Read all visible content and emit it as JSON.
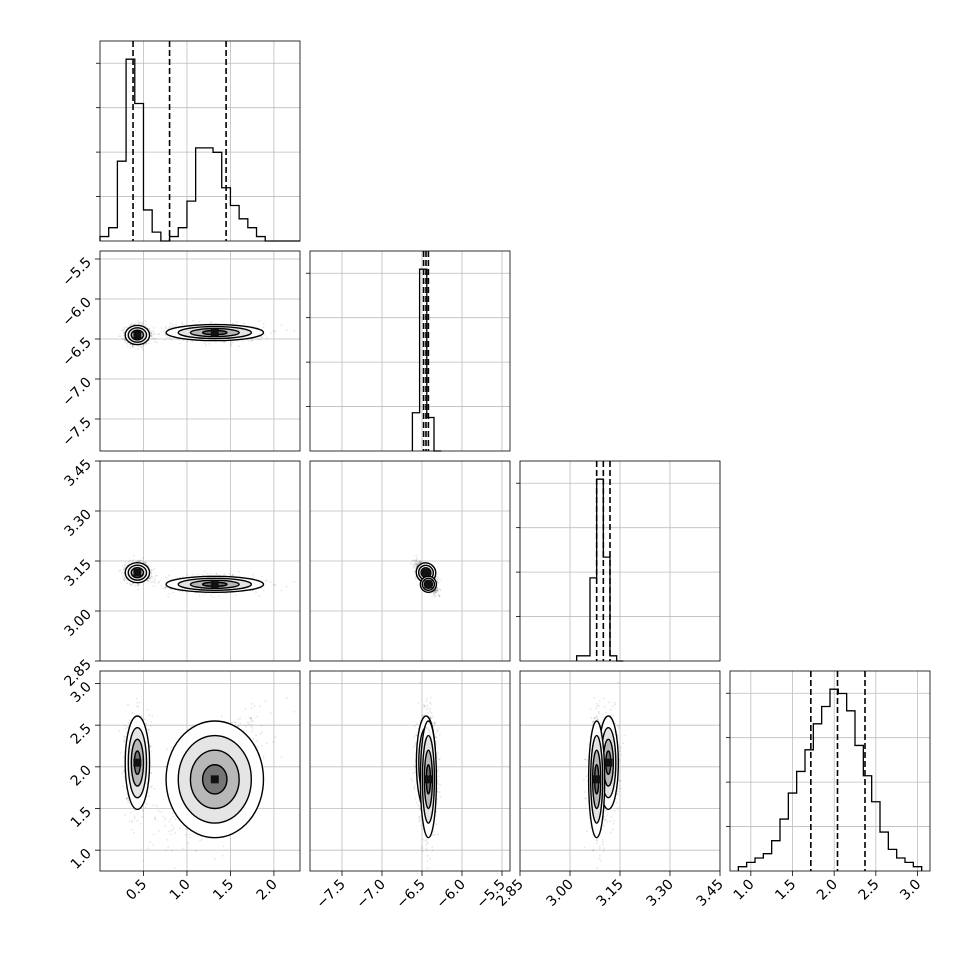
{
  "chart_data": {
    "type": "corner",
    "grid": true,
    "parameters": [
      {
        "range": [
          0.0,
          2.3
        ],
        "ticks": [
          0.5,
          1.0,
          1.5,
          2.0
        ],
        "tick_labels": [
          "0.5",
          "1.0",
          "1.5",
          "2.0"
        ],
        "quantiles": [
          0.38,
          0.8,
          1.45
        ],
        "histogram": {
          "bin_edges": [
            0.0,
            0.1,
            0.2,
            0.3,
            0.4,
            0.5,
            0.6,
            0.7,
            0.8,
            0.9,
            1.0,
            1.1,
            1.2,
            1.3,
            1.4,
            1.5,
            1.6,
            1.7,
            1.8,
            1.9,
            2.0,
            2.1,
            2.2,
            2.3
          ],
          "counts": [
            1,
            3,
            18,
            41,
            31,
            7,
            2,
            0,
            1,
            3,
            9,
            21,
            21,
            20,
            12,
            8,
            5,
            3,
            1,
            0,
            0,
            0,
            0
          ]
        }
      },
      {
        "range": [
          -7.9,
          -5.4
        ],
        "ticks": [
          -7.5,
          -7.0,
          -6.5,
          -6.0,
          -5.5
        ],
        "tick_labels": [
          "−7.5",
          "−7.0",
          "−6.5",
          "−6.0",
          "−5.5"
        ],
        "quantiles": [
          -6.48,
          -6.45,
          -6.42
        ],
        "histogram": {
          "bin_edges": [
            -6.62,
            -6.53,
            -6.44,
            -6.35,
            -6.26
          ],
          "counts": [
            8,
            38,
            7,
            0
          ]
        }
      },
      {
        "range": [
          2.85,
          3.45
        ],
        "ticks": [
          2.85,
          3.0,
          3.15,
          3.3,
          3.45
        ],
        "tick_labels": [
          "2.85",
          "3.00",
          "3.15",
          "3.30",
          "3.45"
        ],
        "quantiles": [
          3.08,
          3.1,
          3.12
        ],
        "histogram": {
          "bin_edges": [
            3.02,
            3.06,
            3.08,
            3.1,
            3.12,
            3.14,
            3.16
          ],
          "counts": [
            1,
            16,
            35,
            20,
            1,
            0
          ]
        }
      },
      {
        "range": [
          0.75,
          3.15
        ],
        "ticks": [
          1.0,
          1.5,
          2.0,
          2.5,
          3.0
        ],
        "tick_labels": [
          "1.0",
          "1.5",
          "2.0",
          "2.5",
          "3.0"
        ],
        "quantiles": [
          1.72,
          2.04,
          2.37
        ],
        "histogram": {
          "bin_edges": [
            0.85,
            0.95,
            1.05,
            1.15,
            1.25,
            1.35,
            1.45,
            1.55,
            1.65,
            1.75,
            1.85,
            1.95,
            2.05,
            2.15,
            2.25,
            2.35,
            2.45,
            2.55,
            2.65,
            2.75,
            2.85,
            2.95,
            3.05
          ],
          "counts": [
            1,
            2,
            3,
            4,
            7,
            12,
            18,
            23,
            28,
            34,
            38,
            42,
            41,
            37,
            29,
            22,
            16,
            9,
            5,
            3,
            2,
            1
          ]
        }
      }
    ],
    "clusters": [
      {
        "means": [
          0.43,
          -6.45,
          3.115,
          2.05
        ],
        "sd": [
          0.07,
          0.06,
          0.015,
          0.28
        ]
      },
      {
        "means": [
          1.32,
          -6.42,
          3.08,
          1.85
        ],
        "sd": [
          0.28,
          0.05,
          0.012,
          0.35
        ]
      }
    ]
  }
}
